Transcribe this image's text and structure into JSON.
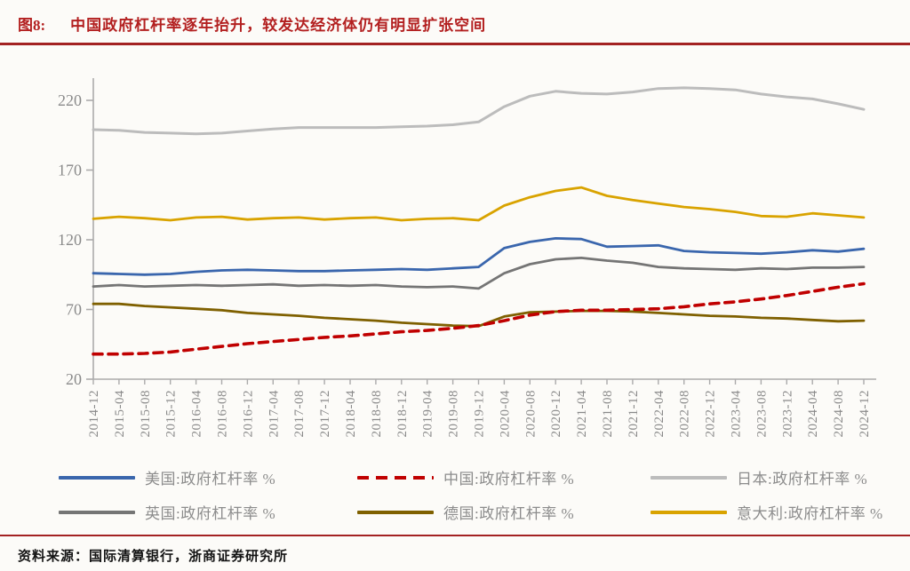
{
  "figure": {
    "tag": "图8:",
    "title": "中国政府杠杆率逐年抬升，较发达经济体仍有明显扩张空间",
    "accent_color": "#b32020",
    "rule_color": "#a32222",
    "page_bg": "#fcfbf8"
  },
  "source": {
    "label": "资料来源：",
    "text": "国际清算银行，浙商证券研究所"
  },
  "chart_data": {
    "type": "line",
    "title": "",
    "xlabel": "",
    "ylabel": "",
    "grid": false,
    "legend_position": "bottom",
    "ylim": [
      20,
      236
    ],
    "yticks": [
      20,
      70,
      120,
      170,
      220
    ],
    "axis_color": "#ababab",
    "tick_label_color": "#8a8a8a",
    "x": [
      "2014-12",
      "2015-04",
      "2015-08",
      "2015-12",
      "2016-04",
      "2016-08",
      "2016-12",
      "2017-04",
      "2017-08",
      "2017-12",
      "2018-04",
      "2018-08",
      "2018-12",
      "2019-04",
      "2019-08",
      "2019-12",
      "2020-04",
      "2020-08",
      "2020-12",
      "2021-04",
      "2021-08",
      "2021-12",
      "2022-04",
      "2022-08",
      "2022-12",
      "2023-04",
      "2023-08",
      "2023-12",
      "2024-04",
      "2024-08",
      "2024-12"
    ],
    "series": [
      {
        "name": "美国:政府杠杆率 %",
        "color": "#3a66ad",
        "dash": null,
        "width": 2.8,
        "values": [
          96,
          95.5,
          95,
          95.5,
          97,
          98,
          98.5,
          98,
          97.5,
          97.5,
          98,
          98.5,
          99,
          98.5,
          99.5,
          100.5,
          114,
          118.5,
          121,
          120.5,
          115,
          115.5,
          116,
          112,
          111,
          110.5,
          110,
          111,
          112.5,
          111.5,
          113.5
        ]
      },
      {
        "name": "中国:政府杠杆率 %",
        "color": "#c00000",
        "dash": "10 7",
        "width": 3.6,
        "values": [
          38,
          38,
          38.5,
          39.5,
          41.5,
          43.5,
          45.5,
          47,
          48.5,
          50,
          51,
          52.5,
          54,
          55,
          56.5,
          58.5,
          62,
          66,
          68.5,
          69.5,
          69.5,
          70,
          70.5,
          72,
          74,
          75.5,
          77.5,
          80,
          83,
          86,
          88.5
        ]
      },
      {
        "name": "日本:政府杠杆率 %",
        "color": "#bcbcbc",
        "dash": null,
        "width": 3,
        "values": [
          199,
          198.5,
          197,
          196.5,
          196,
          196.5,
          198,
          199.5,
          200.5,
          200.5,
          200.5,
          200.5,
          201,
          201.5,
          202.5,
          204.5,
          215.5,
          223,
          226.5,
          225,
          224.5,
          226,
          228.5,
          229,
          228.5,
          227.5,
          224.5,
          222.5,
          221,
          217.5,
          213.5
        ]
      },
      {
        "name": "英国:政府杠杆率 %",
        "color": "#757575",
        "dash": null,
        "width": 2.8,
        "values": [
          86.5,
          87.5,
          86.5,
          87,
          87.5,
          87,
          87.5,
          88,
          87,
          87.5,
          87,
          87.5,
          86.5,
          86,
          86.5,
          85,
          96,
          102.5,
          106,
          107,
          105,
          103.5,
          100.5,
          99.5,
          99,
          98.5,
          99.5,
          99,
          100,
          100,
          100.5
        ]
      },
      {
        "name": "德国:政府杠杆率 %",
        "color": "#7f6000",
        "dash": null,
        "width": 2.8,
        "values": [
          74,
          74,
          72.5,
          71.5,
          70.5,
          69.5,
          67.5,
          66.5,
          65.5,
          64,
          63,
          62,
          60.5,
          59.5,
          58.5,
          58,
          65,
          68,
          68.5,
          69,
          69,
          68.5,
          67.5,
          66.5,
          65.5,
          65,
          64,
          63.5,
          62.5,
          61.5,
          62
        ]
      },
      {
        "name": "意大利:政府杠杆率 %",
        "color": "#d9a300",
        "dash": null,
        "width": 2.8,
        "values": [
          135,
          136.5,
          135.5,
          134,
          136,
          136.5,
          134.5,
          135.5,
          136,
          134.5,
          135.5,
          136,
          134,
          135,
          135.5,
          134,
          144.5,
          150.5,
          155,
          157.5,
          151.5,
          148.5,
          146,
          143.5,
          142,
          140,
          137,
          136.5,
          139,
          137.5,
          136
        ]
      }
    ]
  }
}
